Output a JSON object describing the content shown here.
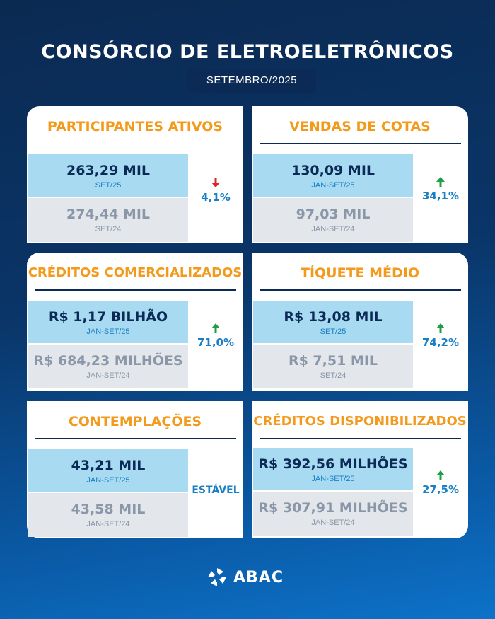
{
  "header": {
    "title": "CONSÓRCIO DE ELETROELETRÔNICOS",
    "subtitle": "SETEMBRO/2025"
  },
  "cards": [
    {
      "title": "PARTICIPANTES ATIVOS",
      "current_value": "263,29 MIL",
      "current_period": "SET/25",
      "previous_value": "274,44 MIL",
      "previous_period": "SET/24",
      "change": "4,1%",
      "direction": "down",
      "arrow_color": "#e02424"
    },
    {
      "title": "VENDAS DE COTAS",
      "current_value": "130,09 MIL",
      "current_period": "JAN-SET/25",
      "previous_value": "97,03 MIL",
      "previous_period": "JAN-SET/24",
      "change": "34,1%",
      "direction": "up",
      "arrow_color": "#1e9e45"
    },
    {
      "title": "CRÉDITOS COMERCIALIZADOS",
      "current_value": "R$ 1,17 BILHÃO",
      "current_period": "JAN-SET/25",
      "previous_value": "R$ 684,23 MILHÕES",
      "previous_period": "JAN-SET/24",
      "change": "71,0%",
      "direction": "up",
      "arrow_color": "#1e9e45"
    },
    {
      "title": "TÍQUETE MÉDIO",
      "current_value": "R$ 13,08 MIL",
      "current_period": "SET/25",
      "previous_value": "R$ 7,51 MIL",
      "previous_period": "SET/24",
      "change": "74,2%",
      "direction": "up",
      "arrow_color": "#1e9e45"
    },
    {
      "title": "CONTEMPLAÇÕES",
      "current_value": "43,21 MIL",
      "current_period": "JAN-SET/25",
      "previous_value": "43,58 MIL",
      "previous_period": "JAN-SET/24",
      "change": "ESTÁVEL",
      "direction": "stable"
    },
    {
      "title": "CRÉDITOS DISPONIBILIZADOS",
      "current_value": "R$ 392,56 MILHÕES",
      "current_period": "JAN-SET/25",
      "previous_value": "R$ 307,91 MILHÕES",
      "previous_period": "JAN-SET/24",
      "change": "27,5%",
      "direction": "up",
      "arrow_color": "#1e9e45"
    }
  ],
  "footer": {
    "logo_text": "ABAC",
    "logo_icon": "abac-logo-icon"
  }
}
